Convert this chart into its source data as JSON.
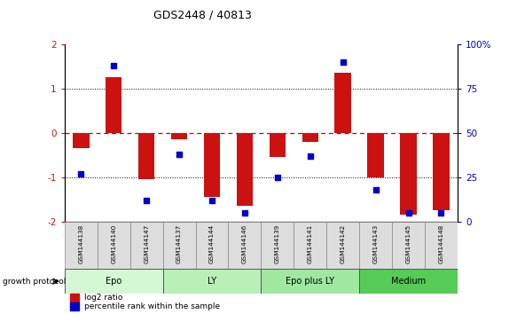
{
  "title": "GDS2448 / 40813",
  "samples": [
    "GSM144138",
    "GSM144140",
    "GSM144147",
    "GSM144137",
    "GSM144144",
    "GSM144146",
    "GSM144139",
    "GSM144141",
    "GSM144142",
    "GSM144143",
    "GSM144145",
    "GSM144148"
  ],
  "log2_ratio": [
    -0.35,
    1.25,
    -1.05,
    -0.15,
    -1.45,
    -1.65,
    -0.55,
    -0.2,
    1.35,
    -1.0,
    -1.85,
    -1.75
  ],
  "percentile_rank": [
    27,
    88,
    12,
    38,
    12,
    5,
    25,
    37,
    90,
    18,
    5,
    5
  ],
  "groups": [
    {
      "label": "Epo",
      "start": 0,
      "end": 3,
      "color": "#d4f7d4"
    },
    {
      "label": "LY",
      "start": 3,
      "end": 6,
      "color": "#b8f0b8"
    },
    {
      "label": "Epo plus LY",
      "start": 6,
      "end": 9,
      "color": "#a0e8a0"
    },
    {
      "label": "Medium",
      "start": 9,
      "end": 12,
      "color": "#55cc55"
    }
  ],
  "ylim": [
    -2,
    2
  ],
  "y2lim": [
    0,
    100
  ],
  "bar_color": "#cc1111",
  "dot_color": "#0000cc",
  "hline_color_zero": "#cc0000",
  "hline_color_pm1": "#000000",
  "bg_color": "#ffffff",
  "legend_log2_color": "#cc1111",
  "legend_pct_color": "#0000cc",
  "sample_cell_color": "#dddddd",
  "sample_cell_edge": "#888888"
}
